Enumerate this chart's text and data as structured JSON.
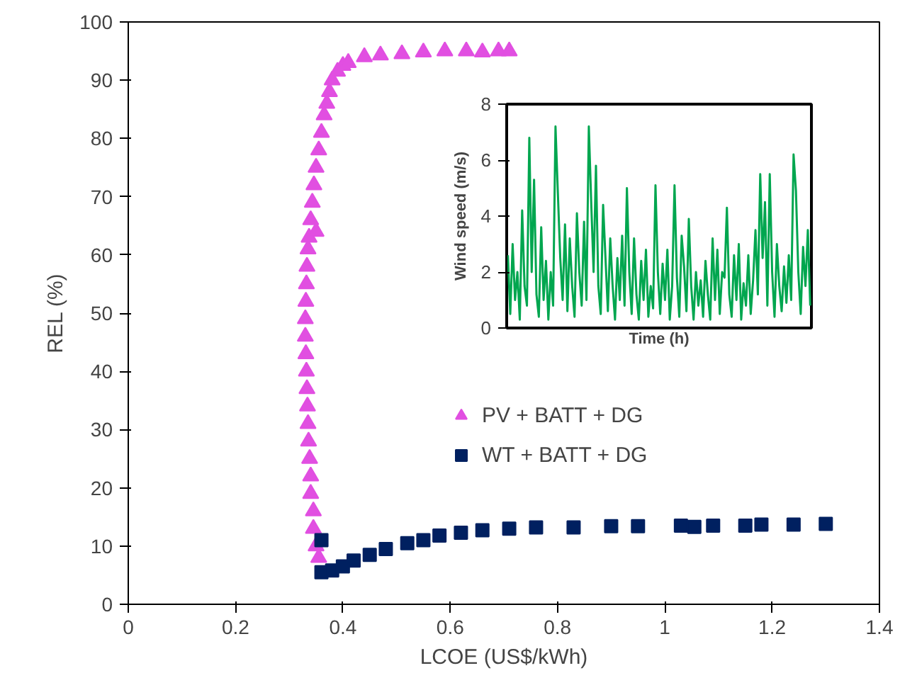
{
  "chart_data": [
    {
      "type": "scatter",
      "xlabel": "LCOE (US$/kWh)",
      "ylabel": "REL (%)",
      "xlim": [
        0,
        1.4
      ],
      "ylim": [
        0,
        100
      ],
      "xticks": [
        0,
        0.2,
        0.4,
        0.6,
        0.8,
        1,
        1.2,
        1.4
      ],
      "yticks": [
        0,
        10,
        20,
        30,
        40,
        50,
        60,
        70,
        80,
        90,
        100
      ],
      "legend": "right",
      "series": [
        {
          "name": "PV + BATT + DG",
          "color": "#e14fe1",
          "marker": "triangle",
          "x": [
            0.355,
            0.35,
            0.345,
            0.345,
            0.34,
            0.34,
            0.338,
            0.336,
            0.335,
            0.334,
            0.333,
            0.332,
            0.331,
            0.33,
            0.33,
            0.331,
            0.332,
            0.333,
            0.335,
            0.337,
            0.35,
            0.34,
            0.343,
            0.346,
            0.35,
            0.355,
            0.36,
            0.365,
            0.37,
            0.375,
            0.38,
            0.39,
            0.4,
            0.41,
            0.44,
            0.47,
            0.51,
            0.55,
            0.59,
            0.63,
            0.66,
            0.69,
            0.71
          ],
          "values": [
            8,
            10,
            13,
            16,
            19,
            22,
            25,
            28,
            31,
            34,
            37,
            40,
            43,
            46,
            49,
            52,
            55,
            58,
            61,
            63,
            64,
            66,
            69,
            72,
            75,
            78,
            81,
            84,
            86,
            88,
            90,
            91.5,
            92.5,
            93,
            94,
            94.3,
            94.5,
            94.8,
            95,
            95,
            94.8,
            95,
            95
          ]
        },
        {
          "name": "WT + BATT + DG",
          "color": "#002060",
          "marker": "square",
          "x": [
            0.36,
            0.36,
            0.38,
            0.4,
            0.42,
            0.45,
            0.48,
            0.52,
            0.55,
            0.58,
            0.62,
            0.66,
            0.71,
            0.76,
            0.83,
            0.9,
            0.95,
            1.03,
            1.055,
            1.09,
            1.15,
            1.18,
            1.24,
            1.3
          ],
          "values": [
            11,
            5.5,
            5.8,
            6.5,
            7.5,
            8.5,
            9.5,
            10.5,
            11,
            11.8,
            12.3,
            12.7,
            13,
            13.2,
            13.2,
            13.4,
            13.4,
            13.5,
            13.3,
            13.5,
            13.5,
            13.7,
            13.7,
            13.8
          ]
        }
      ]
    },
    {
      "type": "line",
      "xlabel": "Time (h)",
      "ylabel": "Wind speed (m/s)",
      "ylim": [
        0,
        8
      ],
      "yticks": [
        0,
        2,
        4,
        6,
        8
      ],
      "tick_labels": "y",
      "color": "#00a64f",
      "categories": [
        null,
        null,
        null,
        null,
        null,
        null,
        null,
        null,
        null,
        null,
        null,
        null,
        null,
        null,
        null,
        null,
        null,
        null,
        null,
        null,
        null,
        null,
        null,
        null,
        null,
        null,
        null,
        null,
        null,
        null,
        null,
        null,
        null,
        null,
        null,
        null,
        null,
        null,
        null,
        null,
        null,
        null,
        null,
        null,
        null,
        null,
        null,
        null,
        null,
        null,
        null,
        null,
        null,
        null,
        null,
        null,
        null,
        null,
        null,
        null,
        null,
        null,
        null,
        null,
        null,
        null,
        null,
        null,
        null,
        null,
        null,
        null,
        null,
        null,
        null,
        null,
        null,
        null,
        null,
        null,
        null,
        null,
        null,
        null,
        null,
        null,
        null,
        null,
        null,
        null,
        null,
        null,
        null,
        null,
        null,
        null,
        null,
        null,
        null,
        null,
        null,
        null,
        null,
        null,
        null,
        null,
        null,
        null,
        null,
        null,
        null,
        null,
        null,
        null,
        null,
        null,
        null,
        null,
        null,
        null,
        null,
        null,
        null,
        null,
        null,
        null,
        null,
        null
      ],
      "values": [
        2.6,
        0.5,
        3,
        1,
        2,
        0.3,
        4.2,
        1.5,
        0.8,
        6.8,
        2,
        5.3,
        1.2,
        0.4,
        3.6,
        1,
        2.4,
        0.3,
        2,
        0.8,
        7.2,
        4.8,
        2.5,
        1,
        3.7,
        0.6,
        3.2,
        1.5,
        0.4,
        4.1,
        2,
        0.8,
        3.8,
        1,
        7.2,
        4.5,
        2,
        5.8,
        1.5,
        0.5,
        4.4,
        2.5,
        0.6,
        3.2,
        1.5,
        0.3,
        2.5,
        1,
        3.3,
        0.8,
        5,
        2,
        0.5,
        3.2,
        1.2,
        0.3,
        2.4,
        1,
        2.8,
        0.4,
        1.5,
        0.7,
        5.1,
        2,
        0.5,
        2.3,
        1,
        2.8,
        0.3,
        1.5,
        5.1,
        1.8,
        0.4,
        3.3,
        2.2,
        0.6,
        3.9,
        1.5,
        0.3,
        2,
        0.8,
        1.7,
        0.4,
        2.4,
        1.2,
        0.3,
        3.2,
        1,
        2.8,
        0.5,
        2,
        1.8,
        4.3,
        1.2,
        0.4,
        2.6,
        1,
        3,
        0.3,
        1.6,
        0.8,
        2.6,
        0.5,
        1.7,
        3.5,
        1.2,
        5.5,
        2.5,
        4.5,
        0.8,
        5.5,
        2,
        0.4,
        3,
        1.5,
        0.6,
        2.2,
        0.9,
        2.6,
        1,
        6.2,
        4.9,
        2,
        0.5,
        2.9,
        1.5,
        3.5,
        0.8
      ]
    }
  ]
}
